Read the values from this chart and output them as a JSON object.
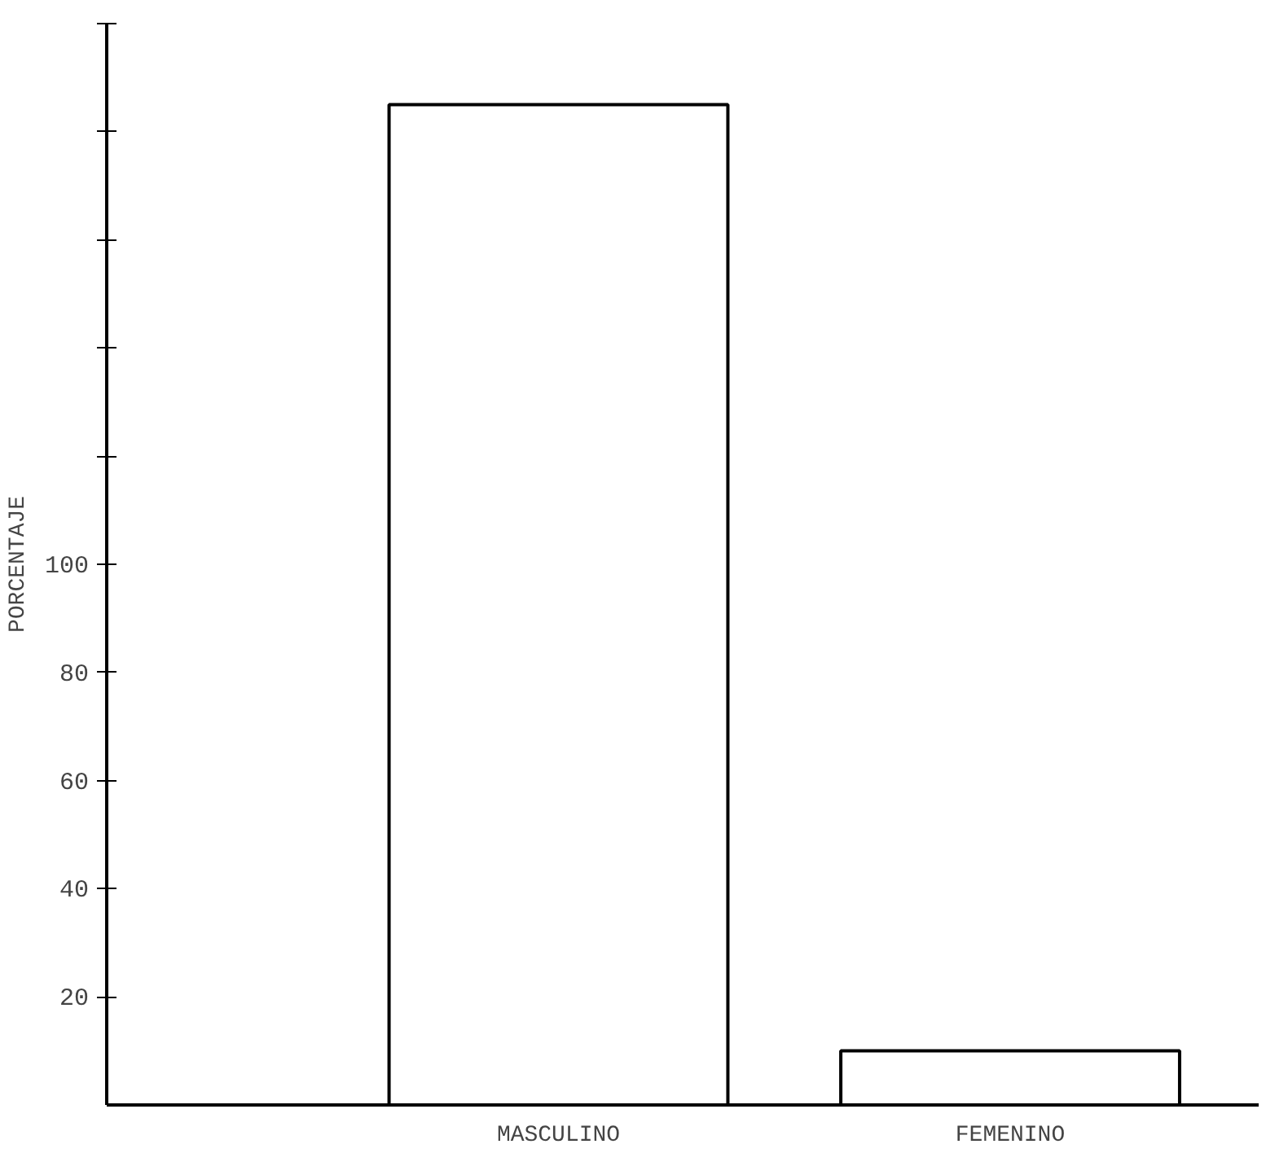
{
  "chart_data": {
    "type": "bar",
    "ylabel": "PORCENTAJE",
    "categories": [
      "MASCULINO",
      "FEMENINO"
    ],
    "values": [
      185,
      10
    ],
    "color": "#ffffff",
    "ylim": [
      0,
      200
    ],
    "yticks": [
      {
        "value": 20,
        "label": "20"
      },
      {
        "value": 40,
        "label": "40"
      },
      {
        "value": 60,
        "label": "60"
      },
      {
        "value": 80,
        "label": "80"
      },
      {
        "value": 100,
        "label": "100"
      },
      {
        "value": 120,
        "label": null
      },
      {
        "value": 140,
        "label": null
      },
      {
        "value": 160,
        "label": null
      },
      {
        "value": 180,
        "label": null
      },
      {
        "value": 200,
        "label": null
      }
    ],
    "grid": false
  }
}
